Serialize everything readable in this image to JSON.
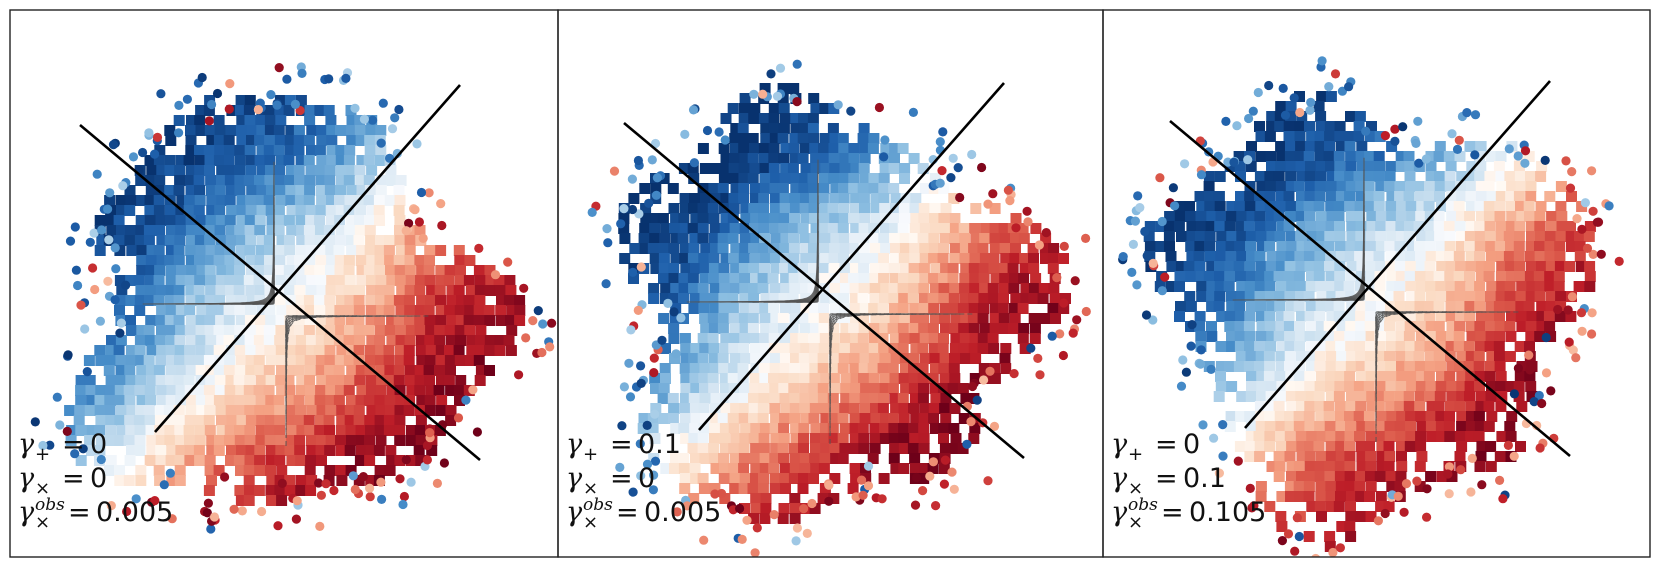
{
  "figure": {
    "title": ""
  },
  "chart_data": [
    {
      "type": "heatmap",
      "title": "",
      "xlabel": "",
      "ylabel": "",
      "colormap": "RdBu (red = positive, blue = negative)",
      "grid": false,
      "legend": {
        "placement": "bottom-left",
        "lines": [
          {
            "symbol": "γ",
            "subscript": "+",
            "superscript": "",
            "sep": "=",
            "value": "0"
          },
          {
            "symbol": "γ",
            "subscript": "×",
            "superscript": "",
            "sep": "=",
            "value": "0"
          },
          {
            "symbol": "γ",
            "subscript": "×",
            "superscript": "obs",
            "sep": "=",
            "value": "0.005"
          }
        ]
      },
      "params": {
        "gamma_plus": 0,
        "gamma_cross": 0,
        "gamma_cross_obs": 0.005
      }
    },
    {
      "type": "heatmap",
      "title": "",
      "xlabel": "",
      "ylabel": "",
      "colormap": "RdBu (red = positive, blue = negative)",
      "grid": false,
      "legend": {
        "placement": "bottom-left",
        "lines": [
          {
            "symbol": "γ",
            "subscript": "+",
            "superscript": "",
            "sep": "=",
            "value": "0.1"
          },
          {
            "symbol": "γ",
            "subscript": "×",
            "superscript": "",
            "sep": "=",
            "value": "0"
          },
          {
            "symbol": "γ",
            "subscript": "×",
            "superscript": "obs",
            "sep": "=",
            "value": "0.005"
          }
        ]
      },
      "params": {
        "gamma_plus": 0.1,
        "gamma_cross": 0,
        "gamma_cross_obs": 0.005
      }
    },
    {
      "type": "heatmap",
      "title": "",
      "xlabel": "",
      "ylabel": "",
      "colormap": "RdBu (red = positive, blue = negative)",
      "grid": false,
      "legend": {
        "placement": "bottom-left",
        "lines": [
          {
            "symbol": "γ",
            "subscript": "+",
            "superscript": "",
            "sep": "=",
            "value": "0"
          },
          {
            "symbol": "γ",
            "subscript": "×",
            "superscript": "",
            "sep": "=",
            "value": "0.1"
          },
          {
            "symbol": "γ",
            "subscript": "×",
            "superscript": "obs",
            "sep": "=",
            "value": "0.105"
          }
        ]
      },
      "params": {
        "gamma_plus": 0,
        "gamma_cross": 0.1,
        "gamma_cross_obs": 0.105
      }
    }
  ]
}
